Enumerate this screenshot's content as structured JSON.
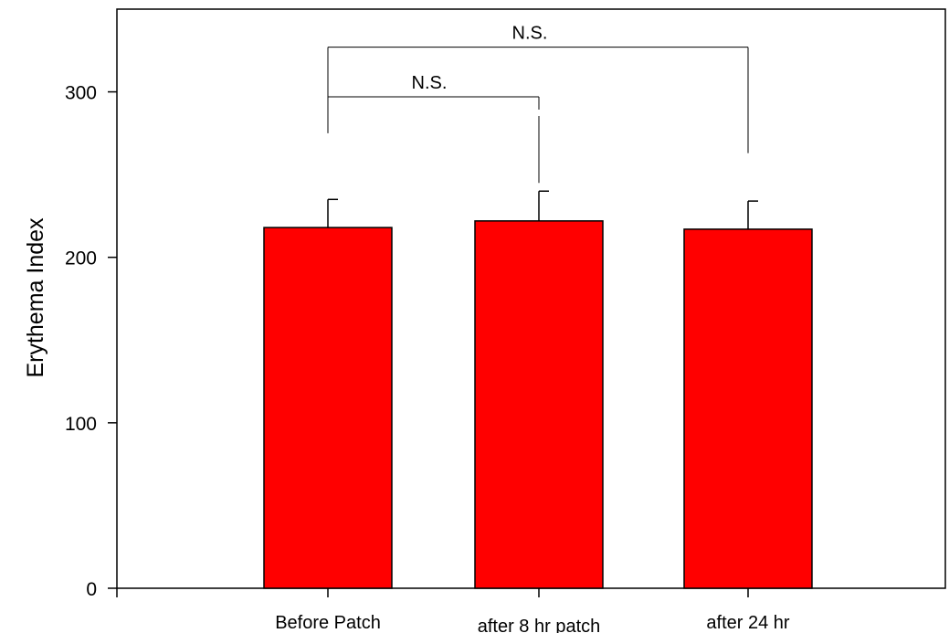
{
  "chart_data": {
    "type": "bar",
    "title": "",
    "xlabel": "",
    "ylabel": "Erythema Index",
    "categories": [
      "Before Patch",
      "after 8 hr patch",
      "after 24 hr"
    ],
    "values": [
      218,
      222,
      217
    ],
    "error_bars": [
      17,
      18,
      17
    ],
    "ylim": [
      0,
      350
    ],
    "yticks": [
      0,
      100,
      200,
      300
    ],
    "bar_color": "#ff0000",
    "grid": false,
    "legend": "none",
    "annotations": [
      {
        "label": "N.S.",
        "from": "Before Patch",
        "to": "after 24 hr",
        "y": 327,
        "left_end": 275,
        "right_end": 263
      },
      {
        "label": "N.S.",
        "from": "Before Patch",
        "to": "after 8 hr patch",
        "y": 297,
        "left_end": 287,
        "right_end": 245
      }
    ]
  }
}
